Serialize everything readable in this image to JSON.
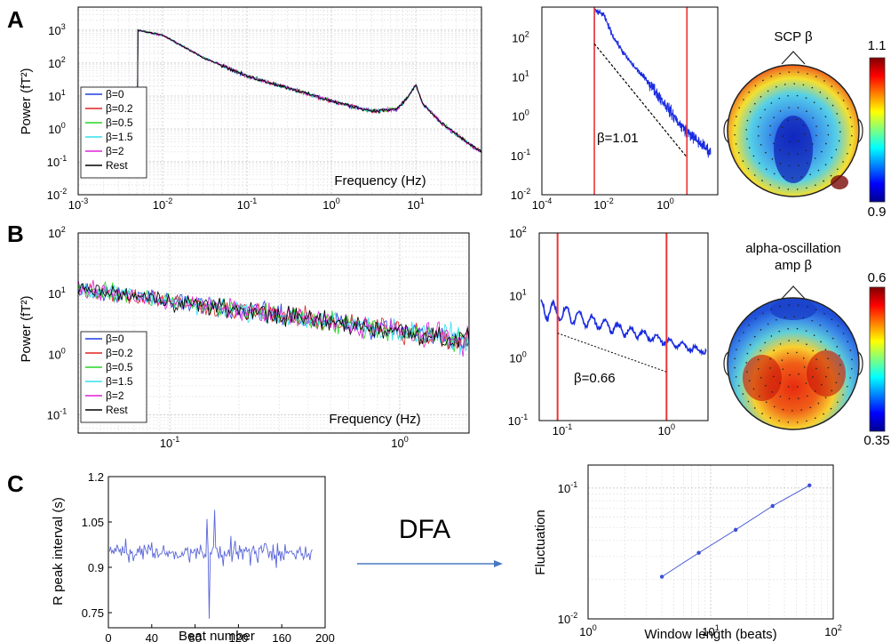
{
  "panel_labels": [
    "A",
    "B",
    "C"
  ],
  "middle_text": "DFA",
  "colors": {
    "series": [
      "#1f3fe0",
      "#e02424",
      "#26d626",
      "#33e0f0",
      "#e020d8",
      "#000000"
    ],
    "fit_line": "#000000",
    "cutoff": "#ee3333",
    "trace": "#1a2be0",
    "ecg": "#5a66d8",
    "dfa": "#3b4fd6",
    "arrow": "#4a78c0"
  },
  "chart_data": [
    {
      "id": "A-spectrum",
      "type": "line",
      "xlabel": "Frequency (Hz)",
      "ylabel": "Power (fT²)",
      "xscale": "log",
      "yscale": "log",
      "xlim": [
        0.001,
        60
      ],
      "ylim": [
        0.01,
        5000
      ],
      "xticks": [
        {
          "base": "10",
          "exp": "-3"
        },
        {
          "base": "10",
          "exp": "-2"
        },
        {
          "base": "10",
          "exp": "-1"
        },
        {
          "base": "10",
          "exp": "0"
        },
        {
          "base": "10",
          "exp": "1"
        }
      ],
      "yticks": [
        {
          "base": "10",
          "exp": "-2"
        },
        {
          "base": "10",
          "exp": "-1"
        },
        {
          "base": "10",
          "exp": "0"
        },
        {
          "base": "10",
          "exp": "1"
        },
        {
          "base": "10",
          "exp": "2"
        },
        {
          "base": "10",
          "exp": "3"
        }
      ],
      "grid": true,
      "legend": "lower-left",
      "series": [
        {
          "name": "β=0"
        },
        {
          "name": "β=0.2"
        },
        {
          "name": "β=0.5"
        },
        {
          "name": "β=1.5"
        },
        {
          "name": "β=2"
        },
        {
          "name": "Rest"
        }
      ],
      "spectrum_points": [
        [
          0.005,
          1000
        ],
        [
          0.01,
          700
        ],
        [
          0.03,
          150
        ],
        [
          0.1,
          40
        ],
        [
          0.3,
          18
        ],
        [
          1,
          7
        ],
        [
          3,
          3.5
        ],
        [
          6,
          4
        ],
        [
          8,
          9
        ],
        [
          10,
          22
        ],
        [
          12,
          6
        ],
        [
          20,
          1.5
        ],
        [
          40,
          0.4
        ],
        [
          60,
          0.2
        ]
      ]
    },
    {
      "id": "A-fit",
      "type": "line",
      "xscale": "log",
      "yscale": "log",
      "xlim": [
        0.0001,
        50
      ],
      "ylim": [
        0.01,
        600
      ],
      "xticks": [
        {
          "base": "10",
          "exp": "-4"
        },
        {
          "base": "10",
          "exp": "-2"
        },
        {
          "base": "10",
          "exp": "0"
        }
      ],
      "yticks": [
        {
          "base": "10",
          "exp": "-2"
        },
        {
          "base": "10",
          "exp": "-1"
        },
        {
          "base": "10",
          "exp": "0"
        },
        {
          "base": "10",
          "exp": "1"
        },
        {
          "base": "10",
          "exp": "2"
        }
      ],
      "cutoffs": [
        0.005,
        5
      ],
      "fit_line": {
        "x": [
          0.005,
          5
        ],
        "y": [
          70,
          0.09
        ]
      },
      "annotation": "β=1.01",
      "spectrum_points": [
        [
          0.005,
          500
        ],
        [
          0.01,
          380
        ],
        [
          0.02,
          110
        ],
        [
          0.05,
          35
        ],
        [
          0.1,
          18
        ],
        [
          0.3,
          7
        ],
        [
          1,
          2
        ],
        [
          3,
          0.6
        ],
        [
          10,
          0.25
        ],
        [
          30,
          0.12
        ]
      ]
    },
    {
      "id": "B-spectrum",
      "type": "line",
      "xlabel": "Frequency (Hz)",
      "ylabel": "Power (fT²)",
      "xscale": "log",
      "yscale": "log",
      "xlim": [
        0.04,
        2
      ],
      "ylim": [
        0.05,
        100
      ],
      "xticks": [
        {
          "base": "10",
          "exp": "-1"
        },
        {
          "base": "10",
          "exp": "0"
        }
      ],
      "yticks": [
        {
          "base": "10",
          "exp": "-1"
        },
        {
          "base": "10",
          "exp": "0"
        },
        {
          "base": "10",
          "exp": "1"
        },
        {
          "base": "10",
          "exp": "2"
        }
      ],
      "grid": true,
      "legend": "lower-left",
      "series": [
        {
          "name": "β=0"
        },
        {
          "name": "β=0.2"
        },
        {
          "name": "β=0.5"
        },
        {
          "name": "β=1.5"
        },
        {
          "name": "β=2"
        },
        {
          "name": "Rest"
        }
      ]
    },
    {
      "id": "B-fit",
      "type": "line",
      "xscale": "log",
      "yscale": "log",
      "xlim": [
        0.06,
        2.5
      ],
      "ylim": [
        0.1,
        100
      ],
      "xticks": [
        {
          "base": "10",
          "exp": "-1"
        },
        {
          "base": "10",
          "exp": "0"
        }
      ],
      "yticks": [
        {
          "base": "10",
          "exp": "-1"
        },
        {
          "base": "10",
          "exp": "0"
        },
        {
          "base": "10",
          "exp": "1"
        },
        {
          "base": "10",
          "exp": "2"
        }
      ],
      "cutoffs": [
        0.09,
        1.0
      ],
      "fit_line": {
        "x": [
          0.09,
          1.0
        ],
        "y": [
          2.5,
          0.6
        ]
      },
      "annotation": "β=0.66"
    },
    {
      "id": "C-interval",
      "type": "line",
      "xlabel": "Beat number",
      "ylabel": "R peak interval (s)",
      "xlim": [
        0,
        200
      ],
      "ylim": [
        0.7,
        1.2
      ],
      "xticks": [
        "0",
        "40",
        "80",
        "120",
        "160",
        "200"
      ],
      "yticks": [
        "0.75",
        "0.9",
        "1.05",
        "1.2"
      ],
      "n_beats": 188,
      "mean": 0.95
    },
    {
      "id": "C-dfa",
      "type": "line",
      "xlabel": "Window length (beats)",
      "ylabel": "Fluctuation",
      "xscale": "log",
      "yscale": "log",
      "xlim": [
        1,
        100
      ],
      "ylim": [
        0.01,
        0.15
      ],
      "xticks": [
        {
          "base": "10",
          "exp": "0"
        },
        {
          "base": "10",
          "exp": "1"
        },
        {
          "base": "10",
          "exp": "2"
        }
      ],
      "yticks": [
        {
          "base": "10",
          "exp": "-2"
        },
        {
          "base": "10",
          "exp": "-1"
        }
      ],
      "grid": true,
      "x": [
        4,
        8,
        16,
        32,
        64
      ],
      "y": [
        0.021,
        0.032,
        0.048,
        0.073,
        0.105
      ]
    }
  ],
  "topomaps": [
    {
      "title_lines": [
        "SCP β"
      ],
      "colorbar_max": "1.1",
      "colorbar_min": "0.9"
    },
    {
      "title_lines": [
        "alpha-oscillation",
        "amp β"
      ],
      "colorbar_max": "0.6",
      "colorbar_min": "0.35"
    }
  ]
}
